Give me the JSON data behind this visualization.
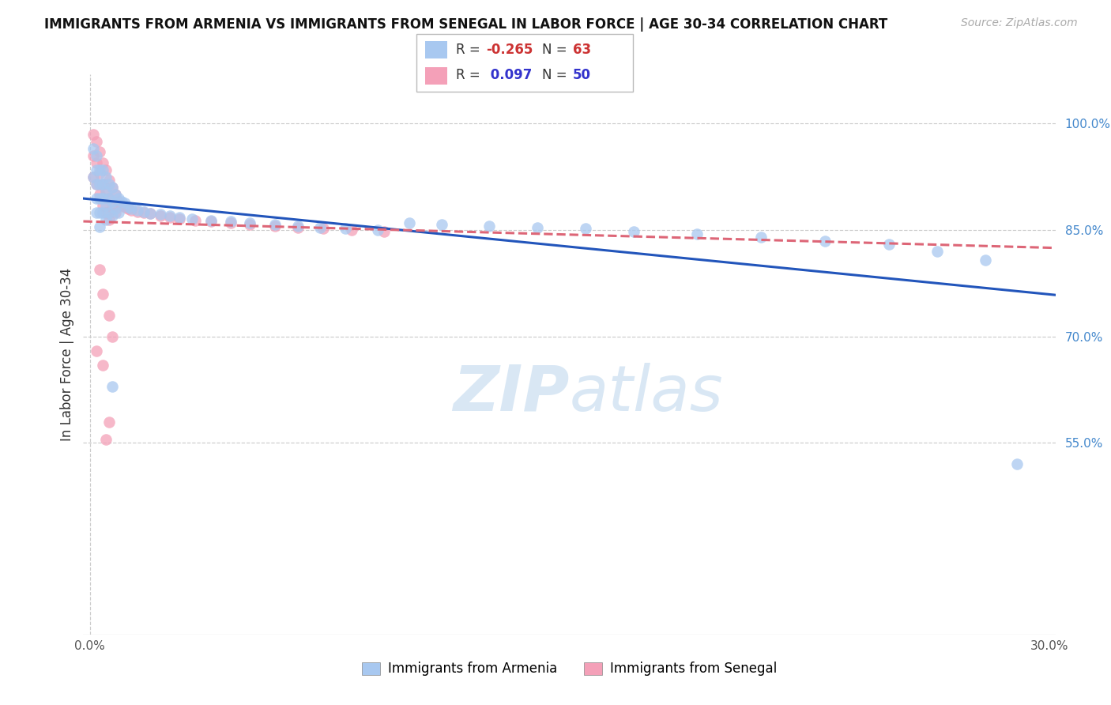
{
  "title": "IMMIGRANTS FROM ARMENIA VS IMMIGRANTS FROM SENEGAL IN LABOR FORCE | AGE 30-34 CORRELATION CHART",
  "source": "Source: ZipAtlas.com",
  "ylabel": "In Labor Force | Age 30-34",
  "watermark_zip": "ZIP",
  "watermark_atlas": "atlas",
  "legend_labels_bottom": [
    "Immigrants from Armenia",
    "Immigrants from Senegal"
  ],
  "R_armenia": "-0.265",
  "N_armenia": "63",
  "R_senegal": "0.097",
  "N_senegal": "50",
  "xlim": [
    -0.002,
    0.302
  ],
  "ylim": [
    0.28,
    1.07
  ],
  "ytick_positions": [
    0.55,
    0.7,
    0.85,
    1.0
  ],
  "ytick_labels": [
    "55.0%",
    "70.0%",
    "85.0%",
    "100.0%"
  ],
  "xtick_positions": [
    0.0,
    0.05,
    0.1,
    0.15,
    0.2,
    0.25,
    0.3
  ],
  "xtick_labels": [
    "0.0%",
    "",
    "",
    "",
    "",
    "",
    "30.0%"
  ],
  "grid_color": "#cccccc",
  "background_color": "#ffffff",
  "armenia_color": "#a8c8f0",
  "senegal_color": "#f4a0b8",
  "trend_armenia_color": "#2255bb",
  "trend_senegal_color": "#dd6677",
  "scatter_alpha": 0.75,
  "scatter_size": 110,
  "armenia_x": [
    0.001,
    0.001,
    0.002,
    0.002,
    0.002,
    0.002,
    0.002,
    0.003,
    0.003,
    0.003,
    0.003,
    0.003,
    0.004,
    0.004,
    0.004,
    0.004,
    0.005,
    0.005,
    0.005,
    0.005,
    0.006,
    0.006,
    0.006,
    0.007,
    0.007,
    0.007,
    0.008,
    0.008,
    0.009,
    0.009,
    0.01,
    0.011,
    0.012,
    0.013,
    0.015,
    0.017,
    0.019,
    0.022,
    0.025,
    0.028,
    0.032,
    0.038,
    0.044,
    0.05,
    0.058,
    0.065,
    0.072,
    0.08,
    0.09,
    0.1,
    0.11,
    0.125,
    0.14,
    0.155,
    0.17,
    0.19,
    0.21,
    0.23,
    0.25,
    0.265,
    0.28,
    0.007,
    0.29
  ],
  "armenia_y": [
    0.925,
    0.965,
    0.955,
    0.935,
    0.915,
    0.895,
    0.875,
    0.935,
    0.915,
    0.895,
    0.875,
    0.855,
    0.935,
    0.915,
    0.895,
    0.875,
    0.925,
    0.905,
    0.885,
    0.865,
    0.915,
    0.895,
    0.875,
    0.91,
    0.89,
    0.87,
    0.9,
    0.88,
    0.895,
    0.875,
    0.89,
    0.888,
    0.882,
    0.88,
    0.878,
    0.876,
    0.874,
    0.872,
    0.87,
    0.868,
    0.866,
    0.864,
    0.862,
    0.86,
    0.858,
    0.856,
    0.854,
    0.852,
    0.85,
    0.86,
    0.858,
    0.856,
    0.854,
    0.852,
    0.848,
    0.845,
    0.84,
    0.835,
    0.83,
    0.82,
    0.808,
    0.63,
    0.52
  ],
  "senegal_x": [
    0.001,
    0.001,
    0.001,
    0.002,
    0.002,
    0.002,
    0.003,
    0.003,
    0.003,
    0.004,
    0.004,
    0.004,
    0.005,
    0.005,
    0.005,
    0.006,
    0.006,
    0.006,
    0.007,
    0.007,
    0.008,
    0.008,
    0.009,
    0.01,
    0.011,
    0.012,
    0.013,
    0.015,
    0.017,
    0.019,
    0.022,
    0.025,
    0.028,
    0.033,
    0.038,
    0.044,
    0.05,
    0.058,
    0.065,
    0.073,
    0.082,
    0.092,
    0.003,
    0.004,
    0.006,
    0.007,
    0.002,
    0.004,
    0.006,
    0.005
  ],
  "senegal_y": [
    0.985,
    0.955,
    0.925,
    0.975,
    0.945,
    0.915,
    0.96,
    0.93,
    0.9,
    0.945,
    0.915,
    0.885,
    0.935,
    0.905,
    0.875,
    0.92,
    0.895,
    0.865,
    0.91,
    0.88,
    0.9,
    0.875,
    0.89,
    0.885,
    0.882,
    0.88,
    0.878,
    0.876,
    0.875,
    0.873,
    0.87,
    0.868,
    0.866,
    0.864,
    0.862,
    0.86,
    0.858,
    0.856,
    0.854,
    0.852,
    0.85,
    0.848,
    0.795,
    0.76,
    0.73,
    0.7,
    0.68,
    0.66,
    0.58,
    0.555
  ]
}
